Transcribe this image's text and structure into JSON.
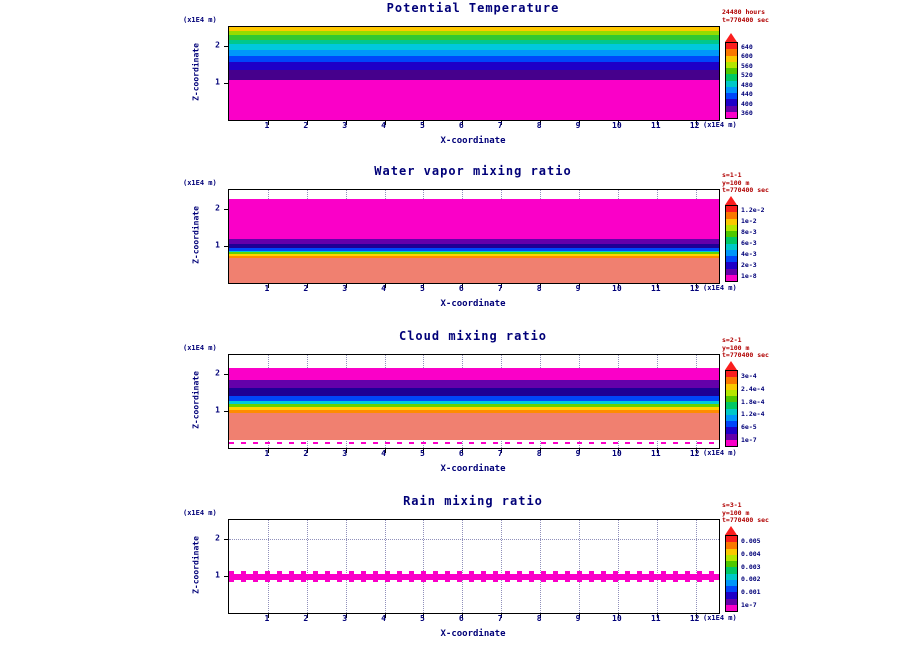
{
  "axes": {
    "x_ticks": [
      1,
      2,
      3,
      4,
      5,
      6,
      7,
      8,
      9,
      10,
      11,
      12
    ],
    "z_ticks": [
      1,
      2
    ],
    "x_max": 12.6,
    "z_max": 2.5
  },
  "colorbar": {
    "colors": [
      "#fa1e1e",
      "#fa7800",
      "#fac800",
      "#b4e600",
      "#50c800",
      "#00c864",
      "#00c8c8",
      "#0096fa",
      "#0046fa",
      "#1e00c8",
      "#6400aa",
      "#fa00c8"
    ],
    "arrow_color": "#fa1e1e"
  },
  "panels": [
    {
      "title": "Potential Temperature",
      "x_axis_label": "X-coordinate",
      "z_axis_label": "Z-coordinate",
      "x_unit": "(x1E4 m)",
      "z_unit": "(x1E4 m)",
      "annotation_lines": [
        "24480 hours",
        "t=770400 sec"
      ],
      "colorbar_labels": [
        "640",
        "600",
        "560",
        "520",
        "480",
        "440",
        "400",
        "360"
      ]
    },
    {
      "title": "Water vapor mixing ratio",
      "x_axis_label": "X-coordinate",
      "z_axis_label": "Z-coordinate",
      "x_unit": "(x1E4 m)",
      "z_unit": "(x1E4 m)",
      "annotation_lines": [
        "s=1-1",
        "y=100 m",
        "t=770400 sec"
      ],
      "colorbar_labels": [
        "1.2e-2",
        "1e-2",
        "8e-3",
        "6e-3",
        "4e-3",
        "2e-3",
        "1e-8"
      ]
    },
    {
      "title": "Cloud mixing ratio",
      "x_axis_label": "X-coordinate",
      "z_axis_label": "Z-coordinate",
      "x_unit": "(x1E4 m)",
      "z_unit": "(x1E4 m)",
      "annotation_lines": [
        "s=2-1",
        "y=100 m",
        "t=770400 sec"
      ],
      "colorbar_labels": [
        "3e-4",
        "2.4e-4",
        "1.8e-4",
        "1.2e-4",
        "6e-5",
        "1e-7"
      ]
    },
    {
      "title": "Rain mixing ratio",
      "x_axis_label": "X-coordinate",
      "z_axis_label": "Z-coordinate",
      "x_unit": "(x1E4 m)",
      "z_unit": "(x1E4 m)",
      "annotation_lines": [
        "s=3-1",
        "y=100 m",
        "t=770400 sec"
      ],
      "colorbar_labels": [
        "0.005",
        "0.004",
        "0.003",
        "0.002",
        "0.001",
        "1e-7"
      ]
    }
  ],
  "chart_data": [
    {
      "type": "heatmap",
      "subtype": "filled-contour-xz-cross-section",
      "title": "Potential Temperature",
      "xlabel": "X-coordinate",
      "ylabel": "Z-coordinate",
      "x_units": "x1E4 m",
      "z_units": "x1E4 m",
      "xlim": [
        0,
        12.6
      ],
      "zlim": [
        0,
        2.5
      ],
      "time_label": "t=770400 sec",
      "contour_levels": [
        "640",
        "600",
        "560",
        "520",
        "480",
        "440",
        "400",
        "360"
      ],
      "structure": "horizontally uniform stratified layers",
      "bands": [
        {
          "color": "#ffc800",
          "z_top": 2.5,
          "z_bottom": 2.4
        },
        {
          "color": "#96dc00",
          "z_top": 2.4,
          "z_bottom": 2.28
        },
        {
          "color": "#32c832",
          "z_top": 2.28,
          "z_bottom": 2.15
        },
        {
          "color": "#00c88c",
          "z_top": 2.15,
          "z_bottom": 2.03
        },
        {
          "color": "#00c8dc",
          "z_top": 2.03,
          "z_bottom": 1.88
        },
        {
          "color": "#0096fa",
          "z_top": 1.88,
          "z_bottom": 1.73
        },
        {
          "color": "#0046fa",
          "z_top": 1.73,
          "z_bottom": 1.55
        },
        {
          "color": "#1e00c8",
          "z_top": 1.55,
          "z_bottom": 1.33
        },
        {
          "color": "#46008c",
          "z_top": 1.33,
          "z_bottom": 1.08
        },
        {
          "color": "#fa00c8",
          "z_top": 1.08,
          "z_bottom": 0
        }
      ]
    },
    {
      "type": "heatmap",
      "subtype": "filled-contour-xz-cross-section",
      "title": "Water vapor mixing ratio",
      "xlabel": "X-coordinate",
      "ylabel": "Z-coordinate",
      "x_units": "x1E4 m",
      "z_units": "x1E4 m",
      "xlim": [
        0,
        12.6
      ],
      "zlim": [
        0,
        2.5
      ],
      "time_label": "t=770400 sec",
      "contour_levels": [
        "1.2e-2",
        "1e-2",
        "8e-3",
        "6e-3",
        "4e-3",
        "2e-3",
        "1e-8"
      ],
      "structure": "horizontally uniform stratified layers",
      "bands": [
        {
          "color": "none",
          "z_top": 2.5,
          "z_bottom": 2.25
        },
        {
          "color": "#fa00c8",
          "z_top": 2.25,
          "z_bottom": 1.18
        },
        {
          "color": "#6400aa",
          "z_top": 1.18,
          "z_bottom": 1.06
        },
        {
          "color": "#1e0096",
          "z_top": 1.06,
          "z_bottom": 0.94
        },
        {
          "color": "#0046fa",
          "z_top": 0.94,
          "z_bottom": 0.87
        },
        {
          "color": "#00c8dc",
          "z_top": 0.87,
          "z_bottom": 0.82
        },
        {
          "color": "#64d200",
          "z_top": 0.82,
          "z_bottom": 0.77
        },
        {
          "color": "#ffd400",
          "z_top": 0.77,
          "z_bottom": 0.72
        },
        {
          "color": "#ff8c00",
          "z_top": 0.72,
          "z_bottom": 0.67
        },
        {
          "color": "#f08070",
          "z_top": 0.67,
          "z_bottom": 0
        }
      ]
    },
    {
      "type": "heatmap",
      "subtype": "filled-contour-xz-cross-section",
      "title": "Cloud mixing ratio",
      "xlabel": "X-coordinate",
      "ylabel": "Z-coordinate",
      "x_units": "x1E4 m",
      "z_units": "x1E4 m",
      "xlim": [
        0,
        12.6
      ],
      "zlim": [
        0,
        2.5
      ],
      "time_label": "t=770400 sec",
      "contour_levels": [
        "3e-4",
        "2.4e-4",
        "1.8e-4",
        "1.2e-4",
        "6e-5",
        "1e-7"
      ],
      "structure": "horizontally uniform stratified layers with clear air above and below",
      "bands": [
        {
          "color": "none",
          "z_top": 2.5,
          "z_bottom": 2.15
        },
        {
          "color": "#fa00c8",
          "z_top": 2.15,
          "z_bottom": 1.82
        },
        {
          "color": "#6400aa",
          "z_top": 1.82,
          "z_bottom": 1.62
        },
        {
          "color": "#1e0096",
          "z_top": 1.62,
          "z_bottom": 1.4
        },
        {
          "color": "#0046fa",
          "z_top": 1.4,
          "z_bottom": 1.25
        },
        {
          "color": "#00c8dc",
          "z_top": 1.25,
          "z_bottom": 1.17
        },
        {
          "color": "#64d200",
          "z_top": 1.17,
          "z_bottom": 1.09
        },
        {
          "color": "#ffd400",
          "z_top": 1.09,
          "z_bottom": 1.02
        },
        {
          "color": "#ff8c00",
          "z_top": 1.02,
          "z_bottom": 0.94
        },
        {
          "color": "#f08070",
          "z_top": 0.94,
          "z_bottom": 0.22
        },
        {
          "color": "none",
          "z_top": 0.22,
          "z_bottom": 0.15
        },
        {
          "color": "#fa00c8",
          "texture": "dashes",
          "z_top": 0.15,
          "z_bottom": 0.1
        },
        {
          "color": "none",
          "z_top": 0.1,
          "z_bottom": 0
        }
      ]
    },
    {
      "type": "heatmap",
      "subtype": "filled-contour-xz-cross-section",
      "title": "Rain mixing ratio",
      "xlabel": "X-coordinate",
      "ylabel": "Z-coordinate",
      "x_units": "x1E4 m",
      "z_units": "x1E4 m",
      "xlim": [
        0,
        12.6
      ],
      "zlim": [
        0,
        2.5
      ],
      "time_label": "t=770400 sec",
      "contour_levels": [
        "0.005",
        "0.004",
        "0.003",
        "0.002",
        "0.001",
        "1e-7"
      ],
      "structure": "thin noisy rain layer centered near z=1, clear elsewhere",
      "bands": [
        {
          "color": "none",
          "z_top": 2.5,
          "z_bottom": 1.12
        },
        {
          "color": "#fa00c8",
          "texture": "dashes",
          "z_top": 1.12,
          "z_bottom": 1.04
        },
        {
          "color": "#fa00c8",
          "z_top": 1.04,
          "z_bottom": 0.9
        },
        {
          "color": "#fa00c8",
          "texture": "dashes",
          "z_top": 0.9,
          "z_bottom": 0.82
        },
        {
          "color": "none",
          "z_top": 0.82,
          "z_bottom": 0
        }
      ]
    }
  ]
}
